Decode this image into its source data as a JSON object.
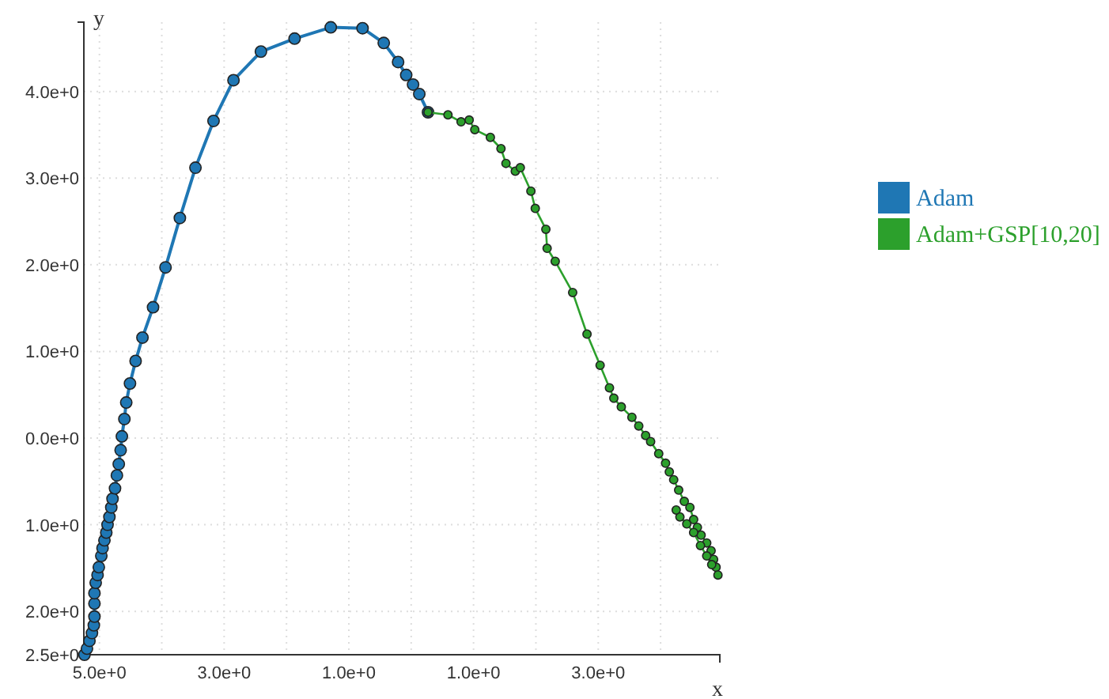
{
  "chart_data": {
    "type": "line",
    "xlabel": "x",
    "ylabel": "y",
    "xlim": [
      -5.25,
      4.95
    ],
    "ylim": [
      -2.5,
      4.8
    ],
    "xticks": [
      {
        "value": -5,
        "label": "5.0e+0"
      },
      {
        "value": -4,
        "label": null
      },
      {
        "value": -3,
        "label": "3.0e+0"
      },
      {
        "value": -2,
        "label": null
      },
      {
        "value": -1,
        "label": "1.0e+0"
      },
      {
        "value": 0,
        "label": null
      },
      {
        "value": 1,
        "label": "1.0e+0"
      },
      {
        "value": 2,
        "label": null
      },
      {
        "value": 3,
        "label": "3.0e+0"
      },
      {
        "value": 4,
        "label": null
      }
    ],
    "yticks": [
      {
        "value": 4,
        "label": "4.0e+0"
      },
      {
        "value": 3,
        "label": "3.0e+0"
      },
      {
        "value": 2,
        "label": "2.0e+0"
      },
      {
        "value": 1,
        "label": "1.0e+0"
      },
      {
        "value": 0,
        "label": "0.0e+0"
      },
      {
        "value": -1,
        "label": "1.0e+0"
      },
      {
        "value": -2,
        "label": "2.0e+0"
      },
      {
        "value": -2.5,
        "label": "2.5e+0"
      }
    ],
    "grid": true,
    "legend": "right",
    "marker": "circle",
    "line_style": "solid",
    "series": [
      {
        "name": "Adam",
        "color": "#1f77b4",
        "x": [
          -5.24,
          -5.2,
          -5.16,
          -5.12,
          -5.09,
          -5.08,
          -5.08,
          -5.08,
          -5.06,
          -5.03,
          -5.01,
          -4.97,
          -4.95,
          -4.92,
          -4.89,
          -4.87,
          -4.84,
          -4.81,
          -4.79,
          -4.75,
          -4.72,
          -4.69,
          -4.66,
          -4.64,
          -4.6,
          -4.57,
          -4.51,
          -4.42,
          -4.31,
          -4.14,
          -3.94,
          -3.71,
          -3.46,
          -3.17,
          -2.85,
          -2.41,
          -1.87,
          -1.29,
          -0.78,
          -0.44,
          -0.21,
          -0.08,
          0.03,
          0.13,
          0.27
        ],
        "values": [
          -2.5,
          -2.43,
          -2.34,
          -2.25,
          -2.16,
          -2.06,
          -1.91,
          -1.79,
          -1.67,
          -1.58,
          -1.49,
          -1.36,
          -1.27,
          -1.18,
          -1.09,
          -1.0,
          -0.91,
          -0.8,
          -0.7,
          -0.58,
          -0.43,
          -0.3,
          -0.14,
          0.02,
          0.22,
          0.41,
          0.63,
          0.89,
          1.16,
          1.51,
          1.97,
          2.54,
          3.12,
          3.66,
          4.13,
          4.46,
          4.61,
          4.74,
          4.73,
          4.56,
          4.34,
          4.19,
          4.08,
          3.97,
          3.76
        ]
      },
      {
        "name": "Adam+GSP[10,20]",
        "color": "#2ca02c",
        "x": [
          0.27,
          0.59,
          0.8,
          0.93,
          1.02,
          1.27,
          1.44,
          1.52,
          1.67,
          1.75,
          1.92,
          1.99,
          2.16,
          2.18,
          2.31,
          2.59,
          2.82,
          3.03,
          3.18,
          3.25,
          3.37,
          3.54,
          3.65,
          3.76,
          3.84,
          3.97,
          4.08,
          4.14,
          4.21,
          4.29,
          4.38,
          4.47,
          4.53,
          4.59,
          4.65,
          4.74,
          4.81,
          4.85,
          4.89,
          4.92,
          4.82,
          4.74,
          4.64,
          4.53,
          4.42,
          4.31,
          4.25
        ],
        "values": [
          3.76,
          3.73,
          3.65,
          3.67,
          3.56,
          3.47,
          3.34,
          3.17,
          3.08,
          3.12,
          2.85,
          2.65,
          2.41,
          2.19,
          2.04,
          1.68,
          1.2,
          0.84,
          0.58,
          0.46,
          0.36,
          0.24,
          0.14,
          0.03,
          -0.04,
          -0.18,
          -0.29,
          -0.39,
          -0.48,
          -0.6,
          -0.73,
          -0.8,
          -0.94,
          -1.03,
          -1.12,
          -1.21,
          -1.3,
          -1.4,
          -1.49,
          -1.58,
          -1.46,
          -1.36,
          -1.24,
          -1.09,
          -0.99,
          -0.91,
          -0.83
        ]
      }
    ]
  }
}
